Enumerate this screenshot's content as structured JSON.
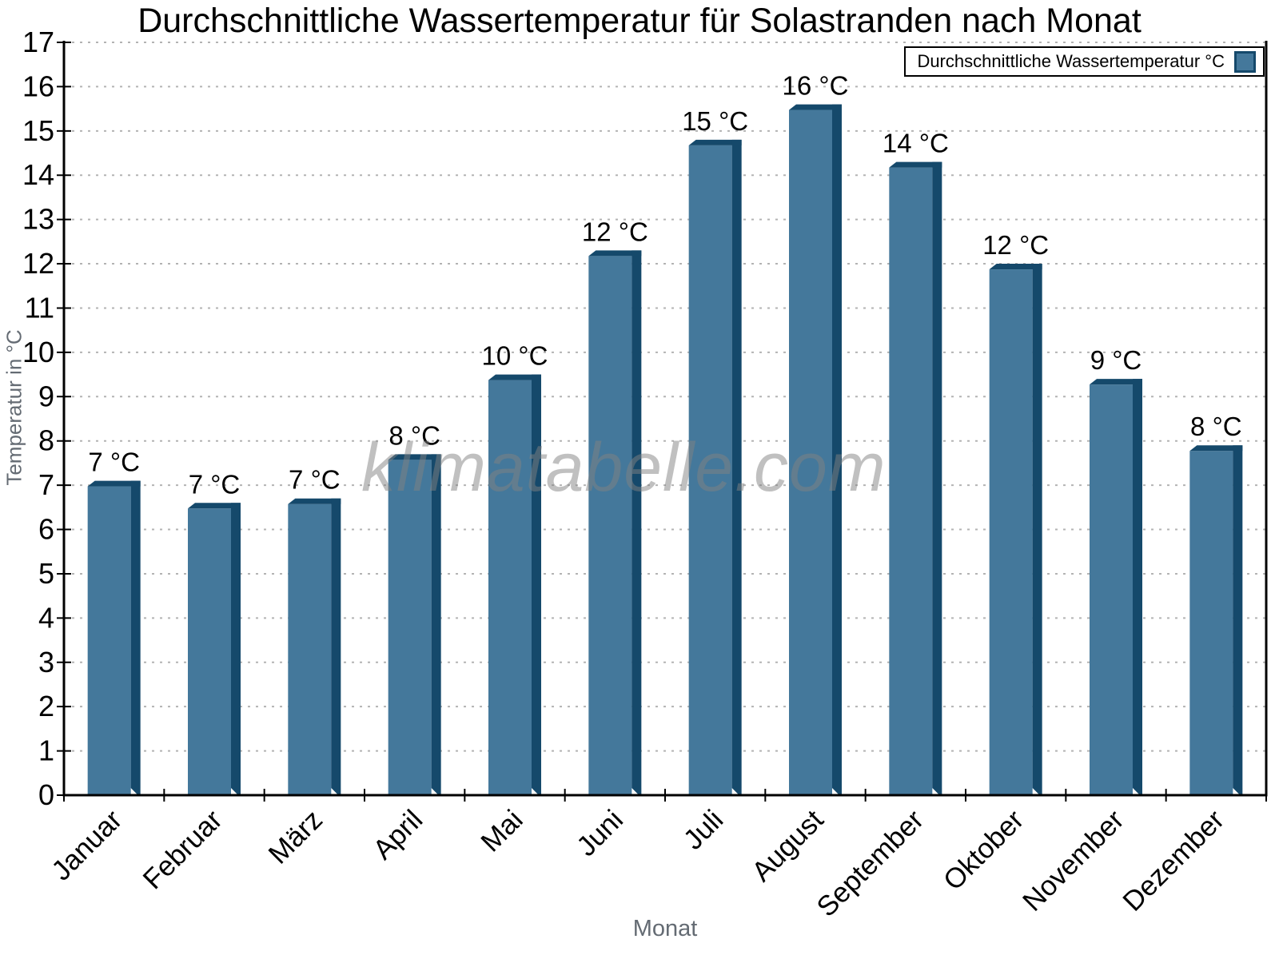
{
  "chart_data": {
    "type": "bar",
    "title": "Durchschnittliche Wassertemperatur für Solastranden nach Monat",
    "legend_label": "Durchschnittliche Wassertemperatur °C",
    "legend_position": "top-right",
    "xlabel": "Monat",
    "ylabel": "Temperatur in °C",
    "ylim": [
      0,
      17
    ],
    "ytick_step": 1,
    "grid": "horizontal-dotted",
    "categories": [
      "Januar",
      "Februar",
      "März",
      "April",
      "Mai",
      "Juni",
      "Juli",
      "August",
      "September",
      "Oktober",
      "November",
      "Dezember"
    ],
    "values_c": [
      7.1,
      6.6,
      6.7,
      7.7,
      9.5,
      12.3,
      14.8,
      15.6,
      14.3,
      12.0,
      9.4,
      7.9
    ],
    "bar_labels": [
      "7 °C",
      "7 °C",
      "7 °C",
      "8 °C",
      "10 °C",
      "12 °C",
      "15 °C",
      "16 °C",
      "14 °C",
      "12 °C",
      "9 °C",
      "8 °C"
    ],
    "watermark": "klimatabelle.com",
    "colors": {
      "bar_fill": "#44789B",
      "bar_edge": "#15496B",
      "grid": "#b3b3b3",
      "axis": "#000000",
      "tick_label": "#000000",
      "axis_title": "#646b73",
      "watermark": "rgba(130,130,130,0.5)"
    }
  }
}
